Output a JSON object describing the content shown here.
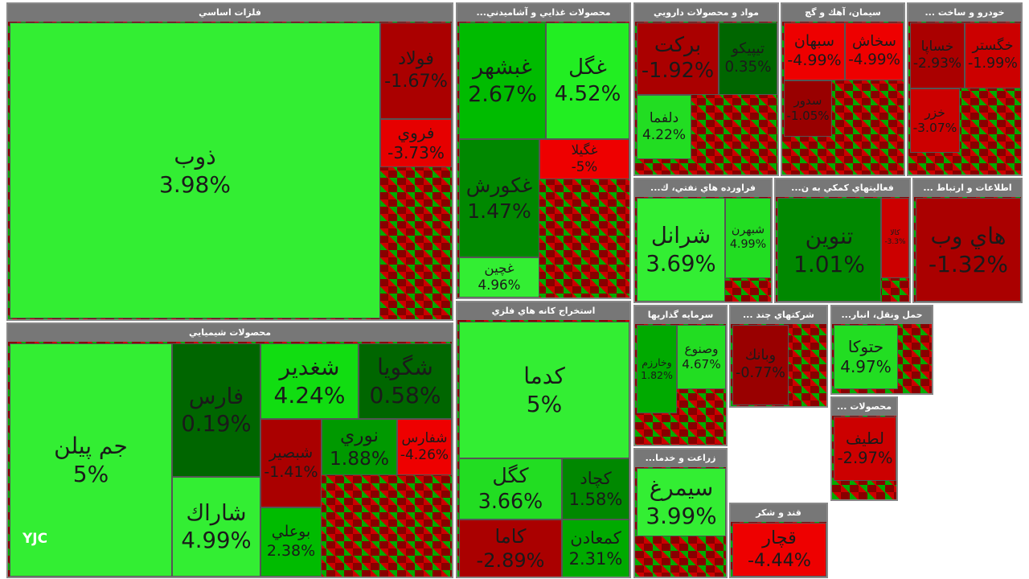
{
  "sectors": [
    {
      "title": "فلزات اساسي",
      "tiles": [
        {
          "name": "ذوب",
          "change": "3.98%",
          "color": "#33ee33"
        },
        {
          "name": "فولاد",
          "change": "-1.67%",
          "color": "#aa0000"
        },
        {
          "name": "فروي",
          "change": "-3.73%",
          "color": "#e60000"
        }
      ]
    },
    {
      "title": "محصولات شيميايي",
      "tiles": [
        {
          "name": "جم پيلن",
          "change": "5%",
          "color": "#33ee33"
        },
        {
          "name": "فارس",
          "change": "0.19%",
          "color": "#006600"
        },
        {
          "name": "شاراك",
          "change": "4.99%",
          "color": "#33ee33"
        },
        {
          "name": "شغدير",
          "change": "4.24%",
          "color": "#11dd11"
        },
        {
          "name": "شگويا",
          "change": "0.58%",
          "color": "#006600"
        },
        {
          "name": "شبصير",
          "change": "-1.41%",
          "color": "#aa0000"
        },
        {
          "name": "نوري",
          "change": "1.88%",
          "color": "#009900"
        },
        {
          "name": "شفارس",
          "change": "-4.26%",
          "color": "#ee0000"
        },
        {
          "name": "بوعلي",
          "change": "2.38%",
          "color": "#00bb00"
        }
      ]
    },
    {
      "title": "محصولات غذايي و آشاميدني...",
      "tiles": [
        {
          "name": "غبشهر",
          "change": "2.67%",
          "color": "#00bb00"
        },
        {
          "name": "غگل",
          "change": "4.52%",
          "color": "#22ee22"
        },
        {
          "name": "غكورش",
          "change": "1.47%",
          "color": "#008800"
        },
        {
          "name": "غچين",
          "change": "4.96%",
          "color": "#33ee33"
        },
        {
          "name": "غگيلا",
          "change": "-5%",
          "color": "#ee0000"
        }
      ]
    },
    {
      "title": "استخراج كانه هاي فلزي",
      "tiles": [
        {
          "name": "كدما",
          "change": "5%",
          "color": "#33ee33"
        },
        {
          "name": "كگل",
          "change": "3.66%",
          "color": "#22dd22"
        },
        {
          "name": "كچاد",
          "change": "1.58%",
          "color": "#008800"
        },
        {
          "name": "كاما",
          "change": "-2.89%",
          "color": "#aa0000"
        },
        {
          "name": "كمعادن",
          "change": "2.31%",
          "color": "#00aa00"
        }
      ]
    },
    {
      "title": "مواد و محصولات دارويي",
      "tiles": [
        {
          "name": "بركت",
          "change": "-1.92%",
          "color": "#aa0000"
        },
        {
          "name": "تيپيكو",
          "change": "0.35%",
          "color": "#006600"
        },
        {
          "name": "دلفما",
          "change": "4.22%",
          "color": "#22dd22"
        }
      ]
    },
    {
      "title": "سيمان، آهك و گچ",
      "tiles": [
        {
          "name": "سبهان",
          "change": "-4.99%",
          "color": "#ee0000"
        },
        {
          "name": "سخاش",
          "change": "-4.99%",
          "color": "#ee0000"
        },
        {
          "name": "سدور",
          "change": "-1.05%",
          "color": "#990000"
        }
      ]
    },
    {
      "title": "خودرو و ساخت ...",
      "tiles": [
        {
          "name": "خساپا",
          "change": "-2.93%",
          "color": "#aa0000"
        },
        {
          "name": "خگستر",
          "change": "-1.99%",
          "color": "#cc0000"
        },
        {
          "name": "خزر",
          "change": "-3.07%",
          "color": "#cc0000"
        }
      ]
    },
    {
      "title": "فراورده هاي نفتي، ك...",
      "tiles": [
        {
          "name": "شرانل",
          "change": "3.69%",
          "color": "#33ee33"
        },
        {
          "name": "شبهرن",
          "change": "4.99%",
          "color": "#22dd22"
        }
      ]
    },
    {
      "title": "فعاليتهاي كمكي به ن...",
      "tiles": [
        {
          "name": "تنوين",
          "change": "1.01%",
          "color": "#008800"
        },
        {
          "name": "كالا",
          "change": "-3.3%",
          "color": "#cc0000"
        }
      ]
    },
    {
      "title": "اطلاعات و ارتباط ...",
      "tiles": [
        {
          "name": "هاي وب",
          "change": "-1.32%",
          "color": "#aa0000"
        }
      ]
    },
    {
      "title": "سرمايه گذاريها",
      "tiles": [
        {
          "name": "وخارزم",
          "change": "1.82%",
          "color": "#00aa00"
        },
        {
          "name": "وصنوع",
          "change": "4.67%",
          "color": "#22dd22"
        }
      ]
    },
    {
      "title": "زراعت و خدما...",
      "tiles": [
        {
          "name": "سيمرغ",
          "change": "3.99%",
          "color": "#33ee33"
        }
      ]
    },
    {
      "title": "قند و شكر",
      "tiles": [
        {
          "name": "قچار",
          "change": "-4.44%",
          "color": "#ee0000"
        }
      ]
    },
    {
      "title": "شركتهاي چند ...",
      "tiles": [
        {
          "name": "وبانك",
          "change": "-0.77%",
          "color": "#990000"
        }
      ]
    },
    {
      "title": "حمل ونقل، انبار...",
      "tiles": [
        {
          "name": "حتوكا",
          "change": "4.97%",
          "color": "#22dd22"
        }
      ]
    },
    {
      "title": "محصولات ...",
      "tiles": [
        {
          "name": "لطيف",
          "change": "-2.97%",
          "color": "#cc0000"
        }
      ]
    }
  ],
  "watermark": "YJC"
}
